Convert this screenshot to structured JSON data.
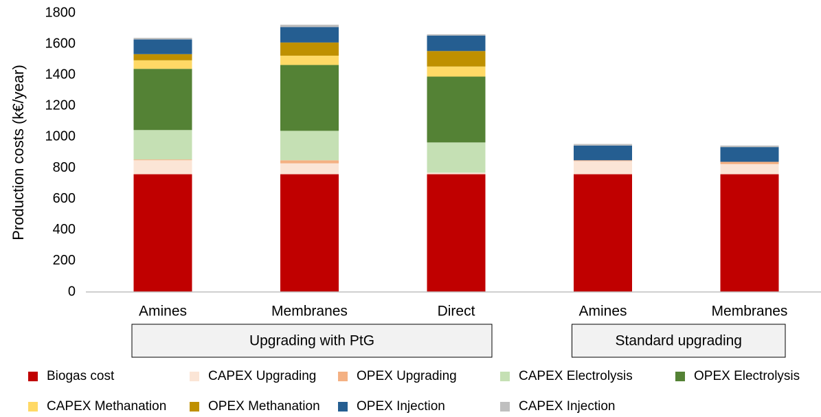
{
  "chart_data": {
    "type": "stacked_bar",
    "y_label": "Production costs (k€/year)",
    "groups": [
      {
        "name": "Upgrading with PtG",
        "categories": [
          "Amines",
          "Membranes",
          "Direct"
        ]
      },
      {
        "name": "Standard upgrading",
        "categories": [
          "Amines",
          "Membranes"
        ]
      }
    ],
    "ylim": [
      0,
      1800
    ],
    "yticks": [
      0,
      200,
      400,
      600,
      800,
      1000,
      1200,
      1400,
      1600,
      1800
    ],
    "grid": false,
    "legend": "bottom",
    "series": [
      {
        "name": "Biogas cost",
        "color": "#c00000",
        "values": [
          760,
          760,
          760,
          760,
          760
        ]
      },
      {
        "name": "CAPEX Upgrading",
        "color": "#fbe5d6",
        "values": [
          90,
          70,
          10,
          85,
          65
        ]
      },
      {
        "name": "OPEX Upgrading",
        "color": "#f4b183",
        "values": [
          5,
          20,
          0,
          5,
          15
        ]
      },
      {
        "name": "CAPEX Electrolysis",
        "color": "#c5e0b4",
        "values": [
          190,
          190,
          195,
          0,
          0
        ]
      },
      {
        "name": "OPEX Electrolysis",
        "color": "#548235",
        "values": [
          395,
          425,
          425,
          0,
          0
        ]
      },
      {
        "name": "CAPEX Methanation",
        "color": "#ffd966",
        "values": [
          55,
          60,
          65,
          0,
          0
        ]
      },
      {
        "name": "OPEX Methanation",
        "color": "#bf9000",
        "values": [
          40,
          85,
          100,
          0,
          0
        ]
      },
      {
        "name": "OPEX Injection",
        "color": "#255e91",
        "values": [
          95,
          100,
          100,
          95,
          95
        ]
      },
      {
        "name": "CAPEX Injection",
        "color": "#bfbfbf",
        "values": [
          10,
          15,
          8,
          10,
          10
        ]
      }
    ]
  }
}
